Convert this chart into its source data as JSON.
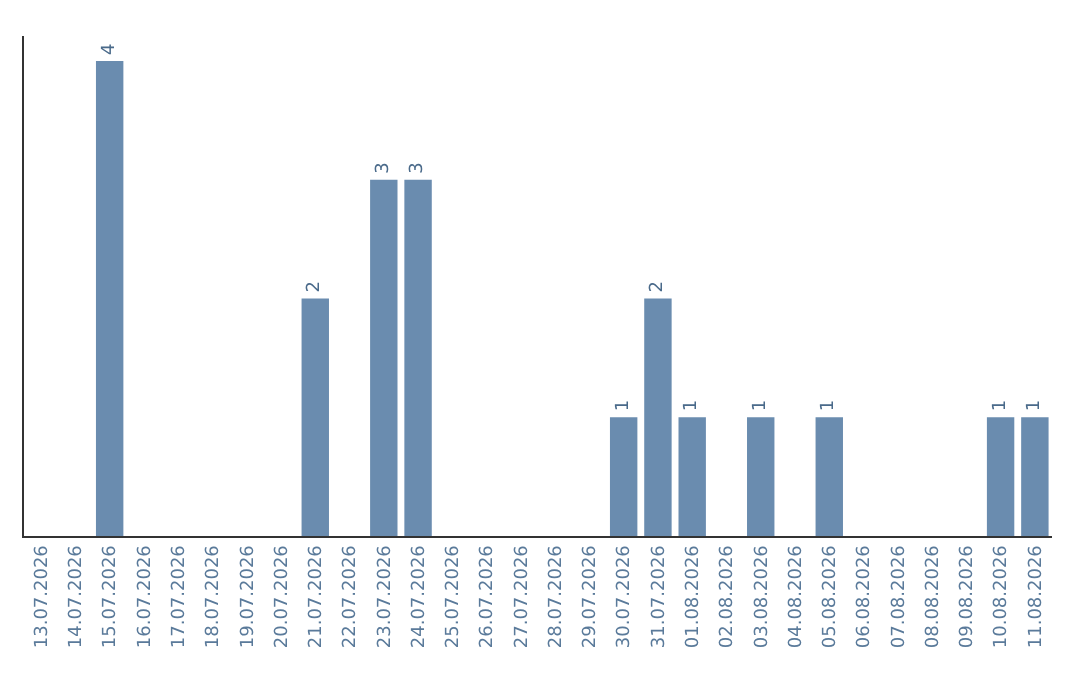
{
  "chart_data": {
    "type": "bar",
    "categories": [
      "13.07.2026",
      "14.07.2026",
      "15.07.2026",
      "16.07.2026",
      "17.07.2026",
      "18.07.2026",
      "19.07.2026",
      "20.07.2026",
      "21.07.2026",
      "22.07.2026",
      "23.07.2026",
      "24.07.2026",
      "25.07.2026",
      "26.07.2026",
      "27.07.2026",
      "28.07.2026",
      "29.07.2026",
      "30.07.2026",
      "31.07.2026",
      "01.08.2026",
      "02.08.2026",
      "03.08.2026",
      "04.08.2026",
      "05.08.2026",
      "06.08.2026",
      "07.08.2026",
      "08.08.2026",
      "09.08.2026",
      "10.08.2026",
      "11.08.2026"
    ],
    "values": [
      0,
      0,
      4,
      0,
      0,
      0,
      0,
      0,
      2,
      0,
      3,
      3,
      0,
      0,
      0,
      0,
      0,
      1,
      2,
      1,
      0,
      1,
      0,
      1,
      0,
      0,
      0,
      0,
      1,
      1
    ],
    "value_labels": [
      null,
      null,
      "4",
      null,
      null,
      null,
      null,
      null,
      "2",
      null,
      "3",
      "3",
      null,
      null,
      null,
      null,
      null,
      "1",
      "2",
      "1",
      null,
      "1",
      null,
      "1",
      null,
      null,
      null,
      null,
      "1",
      "1"
    ],
    "color": "#6a8caf",
    "legend": false
  }
}
